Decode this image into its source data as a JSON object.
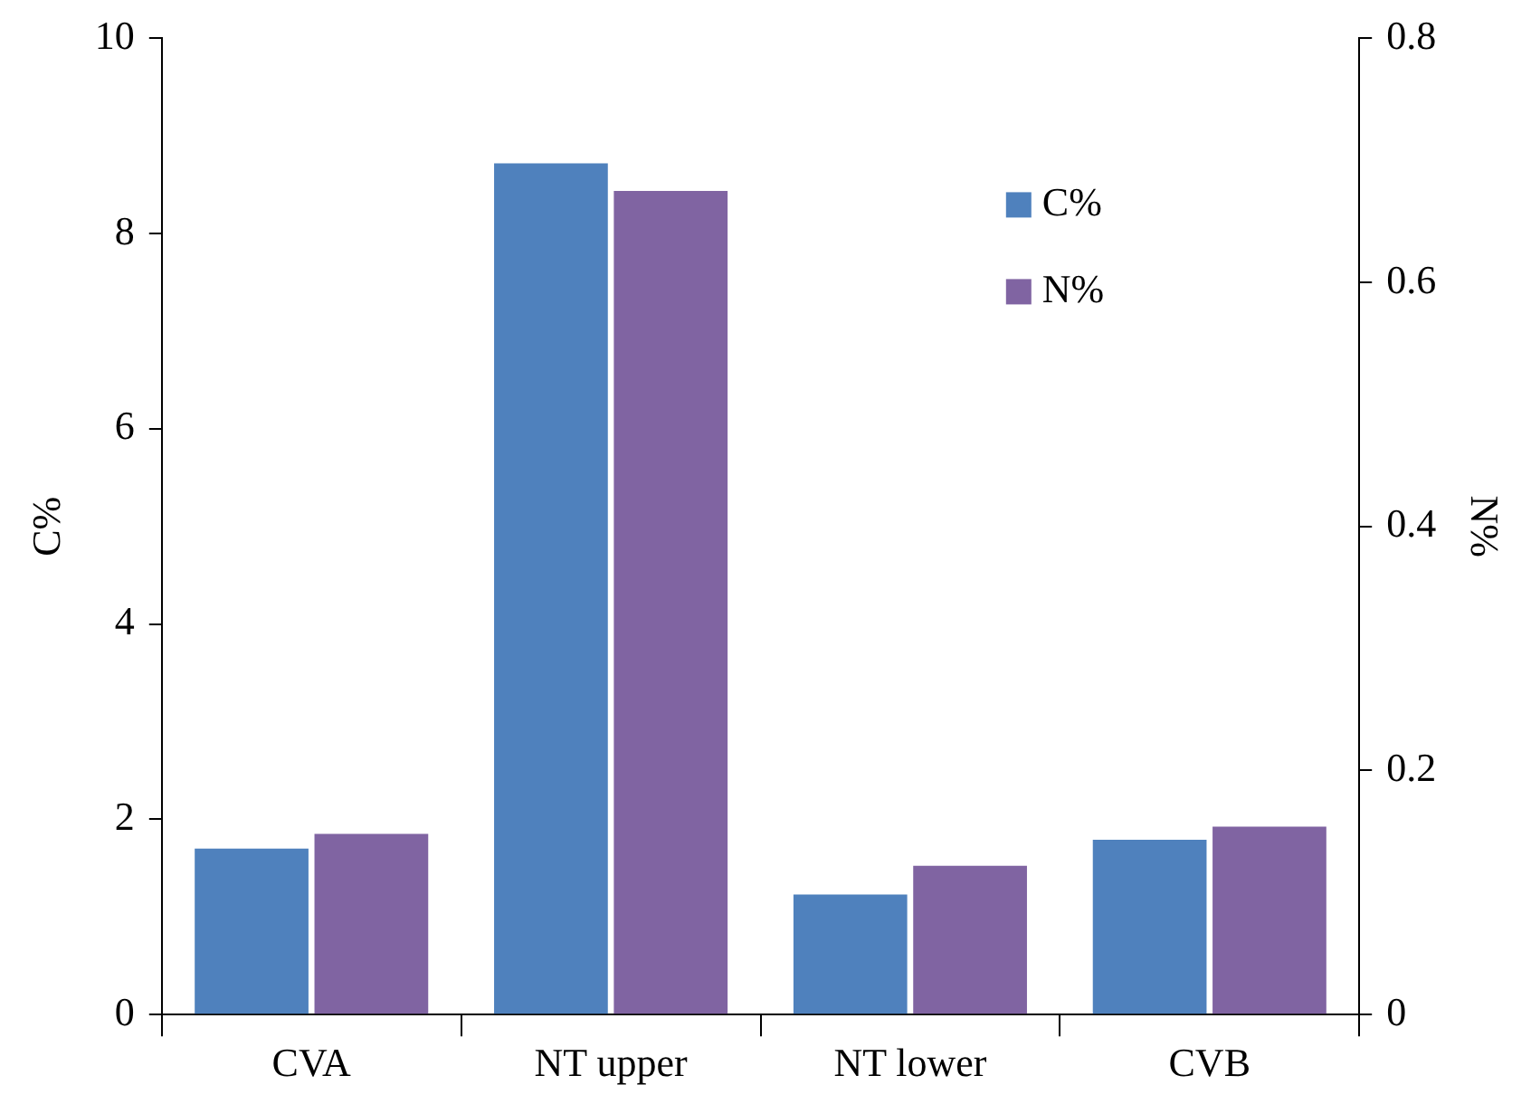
{
  "chart_data": {
    "type": "bar",
    "categories": [
      "CVA",
      "NT upper",
      "NT lower",
      "CVB"
    ],
    "series": [
      {
        "name": "C%",
        "color": "#4f81bd",
        "values": [
          1.7,
          8.72,
          1.23,
          1.79
        ]
      },
      {
        "name": "N%",
        "color": "#8064a2",
        "values": [
          0.148,
          0.675,
          0.122,
          0.154
        ],
        "axis": "y2"
      }
    ],
    "ylabel": "C%",
    "y2label": "N%",
    "ylim": [
      0,
      10
    ],
    "yticks": [
      0,
      2,
      4,
      6,
      8,
      10
    ],
    "y2lim": [
      0,
      0.8
    ],
    "y2ticks": [
      0,
      0.2,
      0.4,
      0.6,
      0.8
    ],
    "grid": false,
    "legend": "top right"
  }
}
